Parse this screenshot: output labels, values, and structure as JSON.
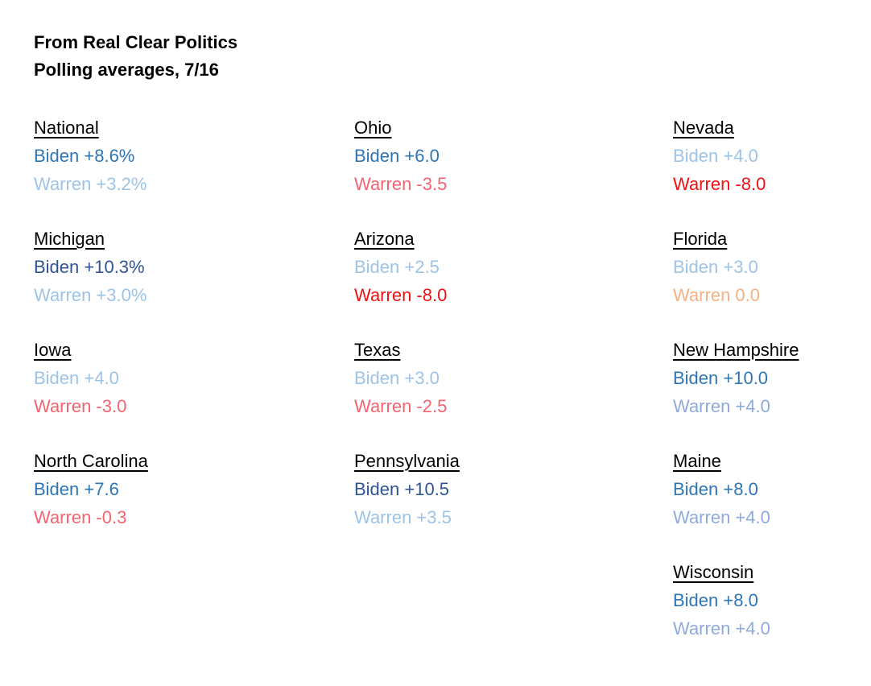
{
  "header": {
    "line1": "From Real Clear Politics",
    "line2": "Polling averages, 7/16"
  },
  "legend_colors": {
    "strong_lead_navy": "#2F5496",
    "solid_lead_blue": "#2E75B6",
    "light_lead_blue": "#9DC3E6",
    "modest_lead_periwinkle": "#8EAADB",
    "slight_trail_salmon": "#F4636F",
    "big_trail_red": "#EE1111",
    "even_orange": "#F5B183",
    "heading_black": "#000000"
  },
  "states": [
    {
      "name": "National",
      "col": 0,
      "row": 0,
      "biden": {
        "text": "Biden +8.6%",
        "color": "#2E75B6"
      },
      "warren": {
        "text": "Warren +3.2%",
        "color": "#9DC3E6"
      }
    },
    {
      "name": "Ohio",
      "col": 1,
      "row": 0,
      "biden": {
        "text": "Biden +6.0",
        "color": "#2E75B6"
      },
      "warren": {
        "text": "Warren -3.5",
        "color": "#F4636F"
      }
    },
    {
      "name": "Nevada",
      "col": 2,
      "row": 0,
      "biden": {
        "text": "Biden +4.0",
        "color": "#9DC3E6"
      },
      "warren": {
        "text": "Warren -8.0",
        "color": "#EE1111"
      }
    },
    {
      "name": "Michigan",
      "col": 0,
      "row": 1,
      "biden": {
        "text": "Biden +10.3%",
        "color": "#2F5496"
      },
      "warren": {
        "text": "Warren +3.0%",
        "color": "#9DC3E6"
      }
    },
    {
      "name": "Arizona",
      "col": 1,
      "row": 1,
      "biden": {
        "text": "Biden +2.5",
        "color": "#9DC3E6"
      },
      "warren": {
        "text": "Warren -8.0",
        "color": "#EE1111"
      }
    },
    {
      "name": "Florida",
      "col": 2,
      "row": 1,
      "biden": {
        "text": "Biden +3.0",
        "color": "#9DC3E6"
      },
      "warren": {
        "text": "Warren 0.0",
        "color": "#F5B183"
      }
    },
    {
      "name": "Iowa",
      "col": 0,
      "row": 2,
      "biden": {
        "text": "Biden +4.0",
        "color": "#9DC3E6"
      },
      "warren": {
        "text": "Warren -3.0",
        "color": "#F4636F"
      }
    },
    {
      "name": "Texas",
      "col": 1,
      "row": 2,
      "biden": {
        "text": "Biden +3.0",
        "color": "#9DC3E6"
      },
      "warren": {
        "text": "Warren -2.5",
        "color": "#F4636F"
      }
    },
    {
      "name": "New Hampshire",
      "col": 2,
      "row": 2,
      "biden": {
        "text": "Biden +10.0",
        "color": "#2E75B6"
      },
      "warren": {
        "text": "Warren +4.0",
        "color": "#8EAADB"
      }
    },
    {
      "name": "North Carolina",
      "col": 0,
      "row": 3,
      "biden": {
        "text": "Biden +7.6",
        "color": "#2E75B6"
      },
      "warren": {
        "text": "Warren -0.3",
        "color": "#F4636F"
      }
    },
    {
      "name": "Pennsylvania",
      "col": 1,
      "row": 3,
      "biden": {
        "text": "Biden +10.5",
        "color": "#2F5496"
      },
      "warren": {
        "text": "Warren +3.5",
        "color": "#9DC3E6"
      }
    },
    {
      "name": "Maine",
      "col": 2,
      "row": 3,
      "biden": {
        "text": "Biden +8.0",
        "color": "#2E75B6"
      },
      "warren": {
        "text": "Warren +4.0",
        "color": "#8EAADB"
      }
    },
    {
      "name": "Wisconsin",
      "col": 2,
      "row": 4,
      "biden": {
        "text": "Biden +8.0",
        "color": "#2E75B6"
      },
      "warren": {
        "text": "Warren +4.0",
        "color": "#8EAADB"
      }
    }
  ]
}
